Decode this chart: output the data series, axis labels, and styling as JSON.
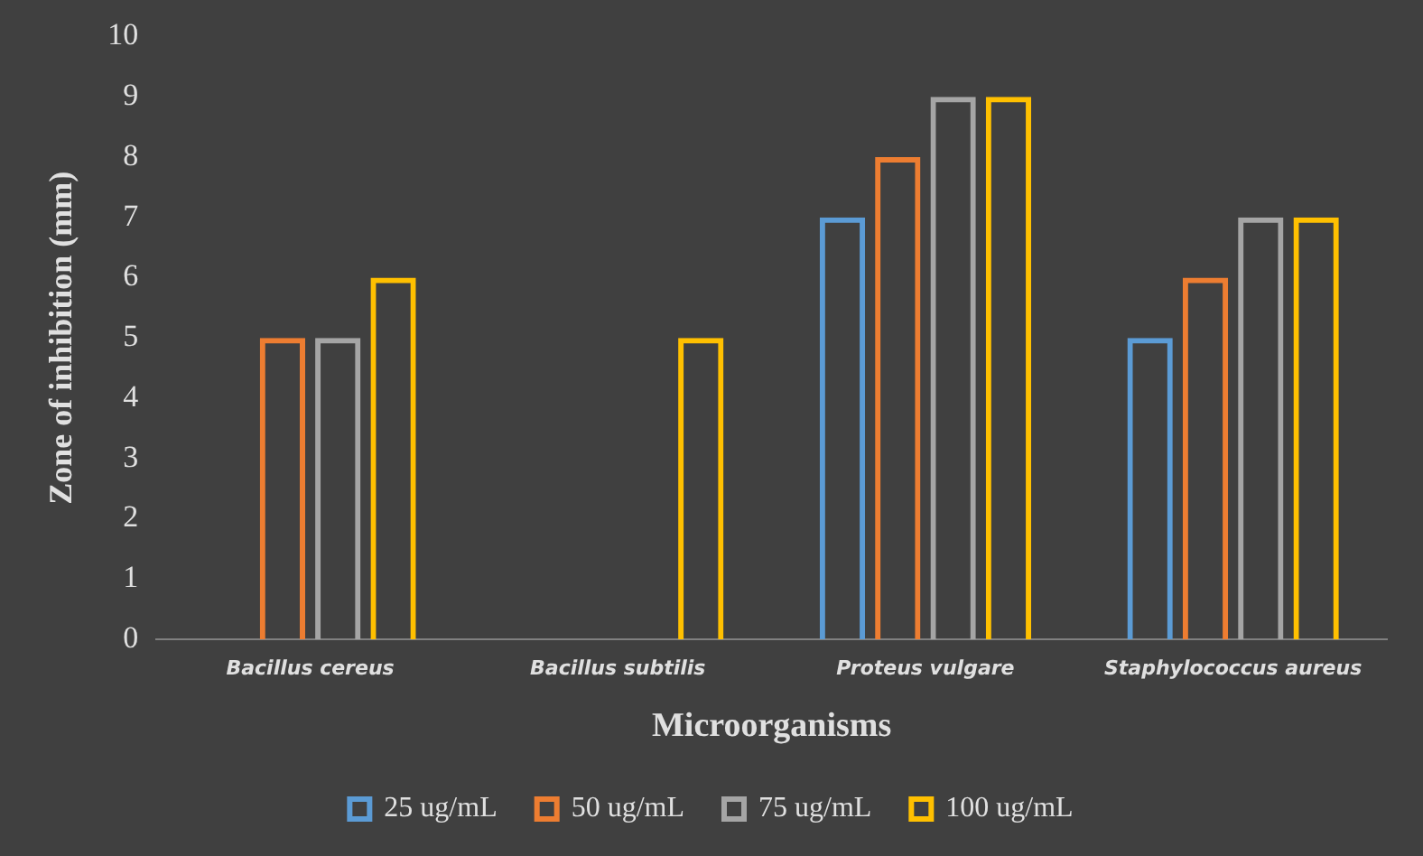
{
  "chart_data": {
    "type": "bar",
    "xlabel": "Microorganisms",
    "ylabel": "Zone of inhibition (mm)",
    "categories": [
      "Bacillus cereus",
      "Bacillus subtilis",
      "Proteus vulgare",
      "Staphylococcus aureus"
    ],
    "series": [
      {
        "name": "25 ug/mL",
        "color": "#5b9bd5",
        "values": [
          0,
          0,
          7,
          5
        ]
      },
      {
        "name": "50 ug/mL",
        "color": "#ed7d31",
        "values": [
          5,
          0,
          8,
          6
        ]
      },
      {
        "name": "75 ug/mL",
        "color": "#a5a5a5",
        "values": [
          5,
          0,
          9,
          7
        ]
      },
      {
        "name": "100 ug/mL",
        "color": "#ffc000",
        "values": [
          6,
          5,
          9,
          7
        ]
      }
    ],
    "ylim": [
      0,
      10
    ],
    "yticks": [
      0,
      1,
      2,
      3,
      4,
      5,
      6,
      7,
      8,
      9,
      10
    ],
    "grid": false,
    "legend": "bottom"
  }
}
